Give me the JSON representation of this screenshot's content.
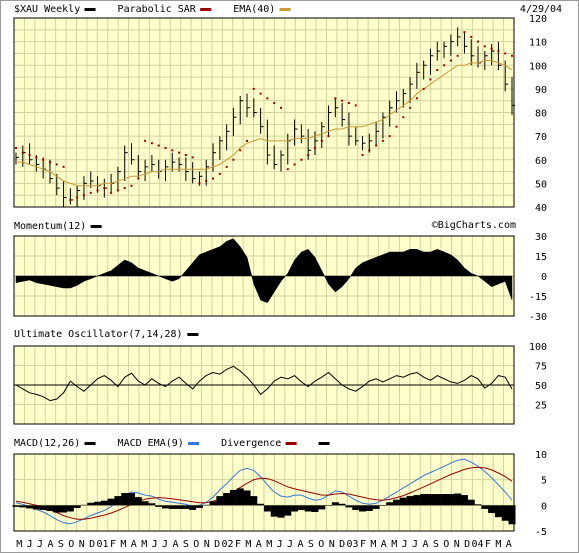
{
  "chart_data": {
    "type": "line",
    "date_label": "4/29/04",
    "watermark": "©BigCharts.com",
    "x_tick_labels": [
      "M",
      "J",
      "J",
      "A",
      "S",
      "O",
      "N",
      "D",
      "01",
      "F",
      "M",
      "A",
      "M",
      "J",
      "J",
      "A",
      "S",
      "O",
      "N",
      "D",
      "02",
      "F",
      "M",
      "A",
      "M",
      "J",
      "J",
      "A",
      "S",
      "O",
      "N",
      "D",
      "03",
      "F",
      "M",
      "A",
      "M",
      "J",
      "J",
      "A",
      "S",
      "O",
      "N",
      "D",
      "04",
      "F",
      "M",
      "A"
    ],
    "panels": [
      {
        "id": "price",
        "legend": [
          {
            "label": "$XAU Weekly",
            "color": "#000000"
          },
          {
            "label": "Parabolic SAR",
            "color": "#990000"
          },
          {
            "label": "EMA(40)",
            "color": "#cc9933"
          }
        ],
        "ylim": [
          40,
          120
        ],
        "yticks": [
          40,
          50,
          60,
          70,
          80,
          90,
          100,
          110,
          120
        ],
        "series": [
          {
            "name": "$XAU Weekly",
            "kind": "hlc",
            "close": [
              61,
              63,
              60,
              58,
              56,
              52,
              48,
              44,
              43,
              47,
              50,
              51,
              49,
              48,
              50,
              55,
              63,
              60,
              55,
              57,
              58,
              55,
              57,
              59,
              58,
              55,
              52,
              53,
              57,
              63,
              68,
              72,
              78,
              85,
              82,
              80,
              74,
              62,
              58,
              62,
              68,
              73,
              70,
              64,
              68,
              74,
              80,
              82,
              77,
              70,
              68,
              67,
              68,
              72,
              78,
              82,
              85,
              88,
              92,
              97,
              100,
              104,
              106,
              108,
              110,
              112,
              108,
              104,
              101,
              104,
              106,
              100,
              92,
              83
            ]
          },
          {
            "name": "EMA(40)",
            "color": "#cc9933",
            "values": [
              59,
              59,
              58,
              57,
              56,
              55,
              53,
              51,
              50,
              49,
              49,
              49,
              49,
              50,
              50,
              51,
              52,
              53,
              53,
              54,
              55,
              55,
              56,
              56,
              56,
              56,
              56,
              56,
              56,
              57,
              58,
              60,
              62,
              65,
              67,
              68,
              69,
              68,
              68,
              68,
              68,
              69,
              69,
              69,
              70,
              71,
              72,
              73,
              73,
              74,
              74,
              74,
              75,
              76,
              77,
              79,
              81,
              83,
              85,
              88,
              90,
              92,
              94,
              96,
              98,
              100,
              100,
              101,
              101,
              102,
              102,
              101,
              100,
              98
            ]
          },
          {
            "name": "Parabolic SAR",
            "color": "#990000",
            "values": [
              65,
              63,
              62,
              61,
              60,
              59,
              58,
              57,
              43,
              44,
              45,
              46,
              47,
              48,
              46,
              47,
              48,
              49,
              52,
              68,
              67,
              66,
              65,
              64,
              63,
              62,
              61,
              50,
              51,
              52,
              54,
              57,
              60,
              64,
              68,
              90,
              88,
              86,
              84,
              82,
              56,
              58,
              60,
              62,
              65,
              68,
              70,
              86,
              85,
              84,
              83,
              62,
              64,
              66,
              68,
              70,
              74,
              78,
              82,
              86,
              90,
              94,
              98,
              100,
              102,
              104,
              114,
              112,
              110,
              108,
              107,
              106,
              105,
              104
            ]
          }
        ]
      },
      {
        "id": "momentum",
        "legend": [
          {
            "label": "Momentum(12)",
            "color": "#000000"
          }
        ],
        "ylim": [
          -30,
          30
        ],
        "yticks": [
          -30,
          -15,
          0,
          15,
          30
        ],
        "series": [
          {
            "name": "Momentum(12)",
            "kind": "area",
            "values": [
              -5,
              -4,
              -3,
              -5,
              -6,
              -7,
              -8,
              -9,
              -9,
              -7,
              -4,
              -2,
              0,
              2,
              4,
              8,
              12,
              10,
              6,
              4,
              2,
              0,
              -2,
              -4,
              -2,
              4,
              10,
              16,
              18,
              20,
              22,
              26,
              28,
              22,
              14,
              -6,
              -18,
              -20,
              -12,
              -4,
              2,
              12,
              18,
              20,
              14,
              4,
              -6,
              -12,
              -8,
              -2,
              6,
              10,
              12,
              14,
              16,
              18,
              18,
              18,
              20,
              20,
              18,
              18,
              20,
              18,
              16,
              12,
              6,
              2,
              0,
              -4,
              -8,
              -6,
              -4,
              -18
            ]
          }
        ]
      },
      {
        "id": "ultimate",
        "legend": [
          {
            "label": "Ultimate Oscillator(7,14,28)",
            "color": "#000000"
          }
        ],
        "ylim": [
          0,
          100
        ],
        "yticks": [
          25,
          50,
          75,
          100
        ],
        "series": [
          {
            "name": "Ultimate Oscillator(7,14,28)",
            "kind": "line",
            "values": [
              50,
              45,
              40,
              38,
              35,
              30,
              32,
              40,
              55,
              48,
              42,
              50,
              58,
              62,
              56,
              48,
              60,
              65,
              55,
              50,
              58,
              52,
              48,
              55,
              60,
              52,
              45,
              55,
              62,
              66,
              64,
              70,
              74,
              68,
              60,
              50,
              38,
              45,
              55,
              60,
              58,
              62,
              54,
              48,
              55,
              60,
              66,
              58,
              50,
              45,
              42,
              48,
              55,
              58,
              54,
              58,
              62,
              60,
              64,
              66,
              60,
              56,
              62,
              58,
              54,
              52,
              56,
              62,
              58,
              46,
              52,
              62,
              60,
              45
            ]
          }
        ]
      },
      {
        "id": "macd",
        "legend": [
          {
            "label": "MACD(12,26)",
            "color": "#000000"
          },
          {
            "label": "MACD EMA(9)",
            "color": "#3377dd"
          },
          {
            "label": "Divergence",
            "color": "#990000"
          },
          {
            "label": "",
            "color": "#000000"
          }
        ],
        "ylim": [
          -5,
          10
        ],
        "yticks": [
          -5,
          0,
          5,
          10
        ],
        "series": [
          {
            "name": "MACD(12,26)",
            "color": "#3377dd",
            "values": [
              0.5,
              0.2,
              -0.3,
              -0.8,
              -1.3,
              -2,
              -2.8,
              -3.4,
              -3.6,
              -3.2,
              -2.6,
              -2,
              -1.5,
              -1,
              -0.2,
              0.8,
              2,
              2.6,
              2.4,
              2,
              1.8,
              1.2,
              0.8,
              0.6,
              0.4,
              0.2,
              -0.2,
              0,
              0.6,
              1.6,
              3,
              4.2,
              5.6,
              6.8,
              7.2,
              6.8,
              5.6,
              4,
              2.6,
              1.8,
              1.6,
              2,
              2,
              1.4,
              1,
              1.2,
              2,
              2.8,
              2.6,
              1.8,
              1,
              0.4,
              0.2,
              0.4,
              1,
              1.8,
              2.6,
              3.4,
              4.2,
              5,
              5.8,
              6.4,
              7,
              7.6,
              8.2,
              8.8,
              9,
              8.4,
              7.6,
              6.6,
              5.4,
              4,
              2.6,
              1
            ]
          },
          {
            "name": "MACD EMA(9)",
            "color": "#990000",
            "values": [
              0.8,
              0.6,
              0.3,
              0,
              -0.4,
              -0.9,
              -1.4,
              -2,
              -2.4,
              -2.7,
              -2.7,
              -2.5,
              -2.2,
              -1.9,
              -1.5,
              -1,
              -0.4,
              0.2,
              0.8,
              1.2,
              1.4,
              1.5,
              1.4,
              1.3,
              1.1,
              0.9,
              0.7,
              0.5,
              0.5,
              0.8,
              1.2,
              1.8,
              2.6,
              3.5,
              4.3,
              5,
              5.3,
              5.2,
              4.8,
              4.2,
              3.6,
              3.2,
              2.9,
              2.6,
              2.3,
              2,
              2,
              2.2,
              2.3,
              2.2,
              1.9,
              1.6,
              1.3,
              1.1,
              1,
              1.2,
              1.5,
              1.9,
              2.4,
              3,
              3.6,
              4.2,
              4.8,
              5.4,
              6,
              6.5,
              7,
              7.3,
              7.4,
              7.3,
              6.9,
              6.3,
              5.6,
              4.7
            ]
          }
        ]
      }
    ]
  }
}
